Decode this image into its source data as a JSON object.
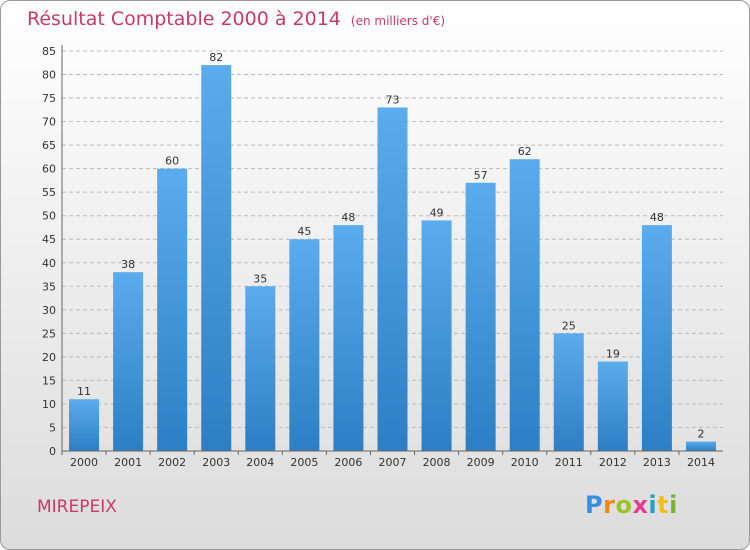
{
  "header": {
    "title": "Résultat Comptable 2000 à 2014",
    "subtitle": "(en milliers d'€)"
  },
  "commune": "MIREPEIX",
  "logo": {
    "letters": [
      "P",
      "r",
      "o",
      "x",
      "i",
      "t",
      "i"
    ]
  },
  "colors": {
    "title": "#c93a6a",
    "bar_light": "#5aacee",
    "bar_dark": "#2c7fc4",
    "grid": "#bbbbbb"
  },
  "chart_data": {
    "type": "bar",
    "title": "Résultat Comptable 2000 à 2014",
    "ylabel": "en milliers d'€",
    "xlabel": "",
    "categories": [
      "2000",
      "2001",
      "2002",
      "2003",
      "2004",
      "2005",
      "2006",
      "2007",
      "2008",
      "2009",
      "2010",
      "2011",
      "2012",
      "2013",
      "2014"
    ],
    "values": [
      11,
      38,
      60,
      82,
      35,
      45,
      48,
      73,
      49,
      57,
      62,
      25,
      19,
      48,
      2
    ],
    "ylim": [
      0,
      85
    ],
    "ytick_step": 5,
    "grid": true
  }
}
